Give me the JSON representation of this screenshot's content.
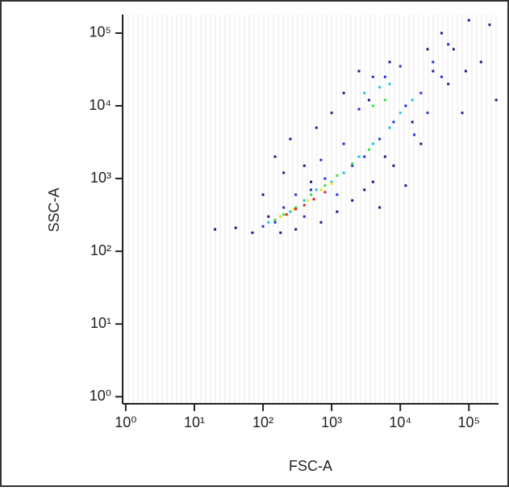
{
  "chart_data": {
    "type": "scatter",
    "xlabel": "FSC-A",
    "ylabel": "SSC-A",
    "xscale": "log",
    "yscale": "log",
    "xlim": [
      0.9,
      270000
    ],
    "ylim": [
      0.8,
      180000
    ],
    "xticks": [
      {
        "value": 1,
        "label": "10⁰"
      },
      {
        "value": 10,
        "label": "10¹"
      },
      {
        "value": 100,
        "label": "10²"
      },
      {
        "value": 1000,
        "label": "10³"
      },
      {
        "value": 10000,
        "label": "10⁴"
      },
      {
        "value": 100000,
        "label": "10⁵"
      }
    ],
    "yticks": [
      {
        "value": 1,
        "label": "10⁰"
      },
      {
        "value": 10,
        "label": "10¹"
      },
      {
        "value": 100,
        "label": "10²"
      },
      {
        "value": 1000,
        "label": "10³"
      },
      {
        "value": 10000,
        "label": "10⁴"
      },
      {
        "value": 100000,
        "label": "10⁵"
      }
    ],
    "series": [
      {
        "color": "#1a1a8c",
        "x": [
          20,
          40,
          70,
          100,
          150,
          180,
          250,
          400,
          600,
          1000,
          1500,
          2500,
          3000,
          5000,
          8000,
          12000,
          20000,
          30000,
          40000,
          60000,
          80000,
          100000,
          150000,
          200000,
          250000,
          120,
          300,
          700,
          1200,
          2000,
          4000,
          6000,
          15000,
          50000,
          90000,
          500,
          200,
          3500,
          7000,
          25000
        ],
        "y": [
          200,
          210,
          180,
          600,
          2000,
          180,
          3500,
          1500,
          5000,
          8000,
          15000,
          30000,
          700,
          400,
          1500,
          800,
          3000,
          30000,
          100000,
          60000,
          8000,
          150000,
          40000,
          130000,
          12000,
          300,
          200,
          250,
          350,
          500,
          900,
          2000,
          6000,
          20000,
          30000,
          900,
          1200,
          12000,
          40000,
          60000
        ]
      },
      {
        "color": "#2030e0",
        "x": [
          150,
          200,
          300,
          500,
          800,
          1200,
          2000,
          3000,
          5000,
          8000,
          12000,
          20000,
          30000,
          50000,
          4000,
          6000,
          10000,
          2500,
          1500,
          700,
          25000,
          40000,
          100,
          400,
          16000
        ],
        "y": [
          250,
          400,
          600,
          700,
          1000,
          600,
          1500,
          2000,
          3500,
          6000,
          10000,
          15000,
          40000,
          70000,
          25000,
          25000,
          35000,
          9000,
          3000,
          1800,
          8000,
          25000,
          220,
          300,
          4000
        ]
      },
      {
        "color": "#20c0e0",
        "x": [
          120,
          180,
          250,
          400,
          600,
          1000,
          1500,
          2500,
          4000,
          7000,
          10000,
          5000,
          7000,
          3000,
          15000
        ],
        "y": [
          250,
          300,
          350,
          500,
          700,
          900,
          1200,
          2000,
          3000,
          5000,
          8000,
          18000,
          20000,
          15000,
          12000
        ]
      },
      {
        "color": "#40e040",
        "x": [
          150,
          200,
          300,
          500,
          800,
          1200,
          2000,
          3500,
          6000,
          4000
        ],
        "y": [
          270,
          320,
          400,
          600,
          800,
          1100,
          1600,
          2500,
          12000,
          10000
        ]
      },
      {
        "color": "#f0e020",
        "x": [
          180,
          280,
          450,
          700,
          1000
        ],
        "y": [
          300,
          380,
          500,
          700,
          850
        ]
      },
      {
        "color": "#e02020",
        "x": [
          220,
          300,
          400,
          550,
          800
        ],
        "y": [
          320,
          380,
          430,
          520,
          650
        ]
      }
    ]
  }
}
